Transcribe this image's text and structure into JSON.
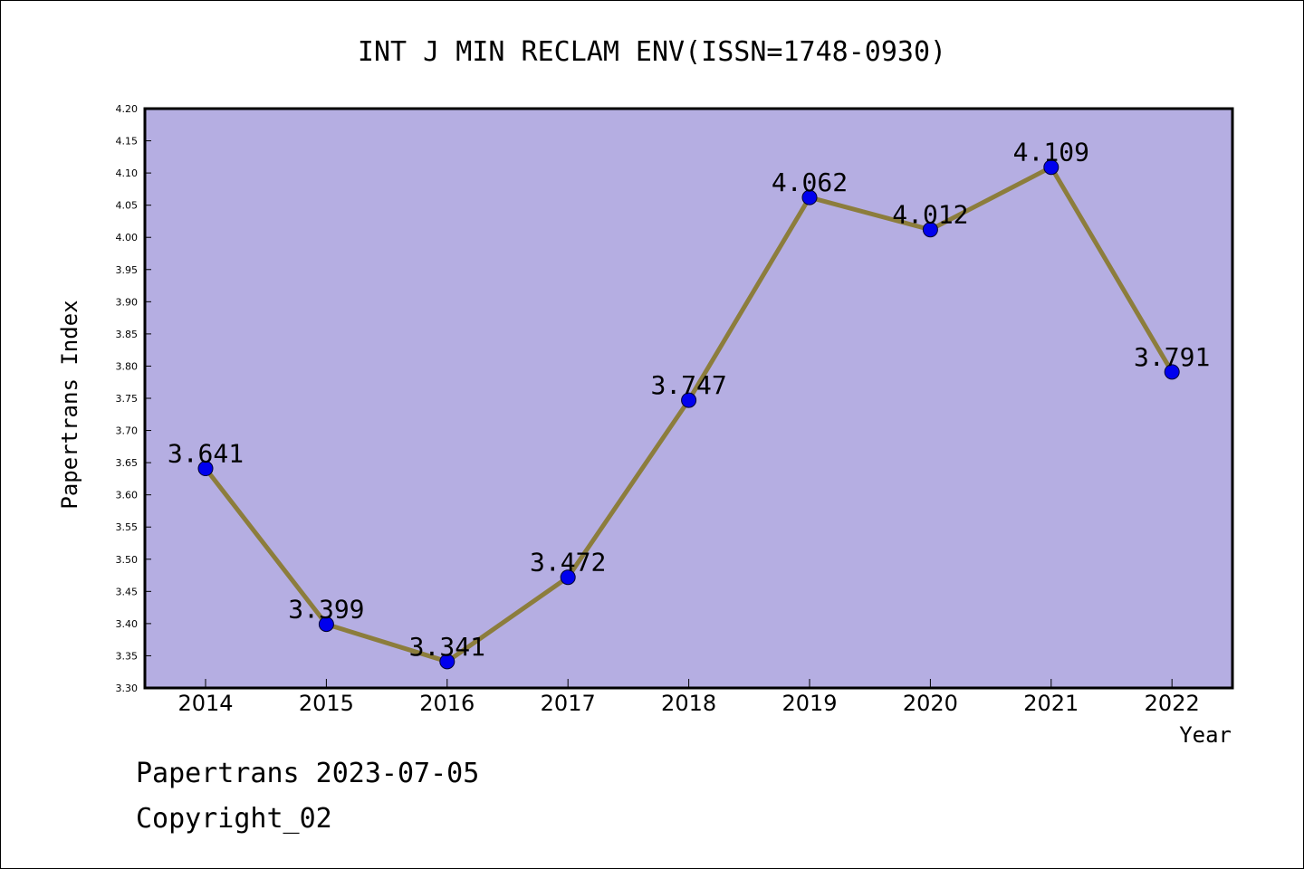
{
  "chart_data": {
    "type": "line",
    "title": "INT J MIN RECLAM ENV(ISSN=1748-0930)",
    "xlabel": "Year",
    "ylabel": "Papertrans Index",
    "categories": [
      "2014",
      "2015",
      "2016",
      "2017",
      "2018",
      "2019",
      "2020",
      "2021",
      "2022"
    ],
    "values": [
      3.641,
      3.399,
      3.341,
      3.472,
      3.747,
      4.062,
      4.012,
      4.109,
      3.791
    ],
    "data_labels": [
      "3.641",
      "3.399",
      "3.341",
      "3.472",
      "3.747",
      "4.062",
      "4.012",
      "4.109",
      "3.791"
    ],
    "ylim": [
      3.3,
      4.2
    ],
    "yticks": [
      "3.30",
      "3.35",
      "3.40",
      "3.45",
      "3.50",
      "3.55",
      "3.60",
      "3.65",
      "3.70",
      "3.75",
      "3.80",
      "3.85",
      "3.90",
      "3.95",
      "4.00",
      "4.05",
      "4.10",
      "4.15",
      "4.20"
    ],
    "grid": false,
    "colors": {
      "plot_background": "#b5aee2",
      "line": "#8c7d3c",
      "marker": "#0000ee"
    }
  },
  "footer": {
    "line1": "Papertrans 2023-07-05",
    "line2": "Copyright_02"
  }
}
